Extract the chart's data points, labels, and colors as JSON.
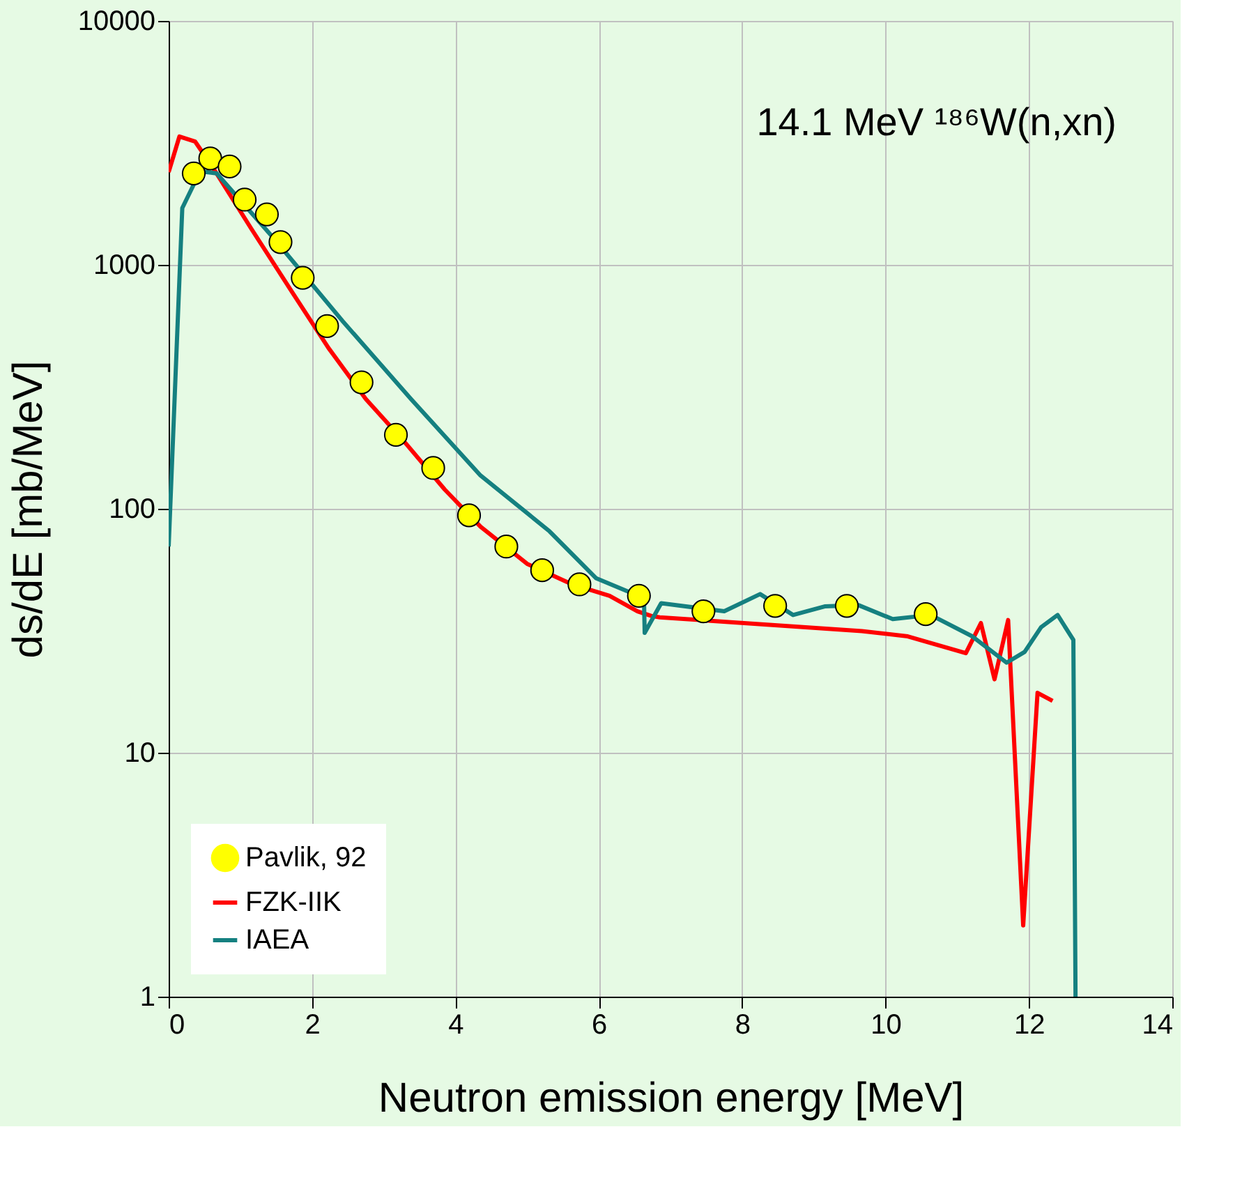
{
  "chart_data": {
    "type": "line",
    "xlabel": "Neutron emission energy [MeV]",
    "ylabel": "ds/dE  [mb/MeV]",
    "xlim": [
      0,
      14
    ],
    "ylim": [
      1,
      10000
    ],
    "xticks": [
      0,
      2,
      4,
      6,
      8,
      10,
      12,
      14
    ],
    "yticks": [
      1,
      10,
      100,
      1000,
      10000
    ],
    "log": "y",
    "grid": true,
    "legend": "bottom left",
    "annotations": [
      "14.1 MeV ¹⁸⁶W(n,xn)"
    ],
    "series": [
      {
        "name": "Pavlik, 92",
        "type": "scatter",
        "marker": "circle",
        "color": "#ffff00",
        "x": [
          0.35,
          0.58,
          0.85,
          1.06,
          1.37,
          1.56,
          1.87,
          2.21,
          2.69,
          3.17,
          3.69,
          4.19,
          4.71,
          5.21,
          5.73,
          6.56,
          7.46,
          8.46,
          9.46,
          10.56
        ],
        "values": [
          2370,
          2730,
          2530,
          1850,
          1610,
          1240,
          885,
          561,
          330,
          201,
          147,
          94,
          70,
          56,
          49,
          44,
          38,
          40,
          40,
          37
        ]
      },
      {
        "name": "FZK-IIK",
        "color": "#ff0000",
        "x": [
          0,
          0.15,
          0.37,
          0.63,
          1.15,
          1.73,
          2.23,
          2.75,
          3.27,
          3.85,
          4.35,
          5.0,
          5.63,
          6.15,
          6.54,
          6.73,
          6.85,
          9.67,
          10.31,
          11.12,
          11.33,
          11.52,
          11.71,
          11.92,
          12.12,
          12.33
        ],
        "values": [
          2400,
          3360,
          3200,
          2470,
          1410,
          767,
          456,
          282,
          191,
          120,
          84.5,
          59.5,
          49,
          44,
          38,
          36.4,
          35.9,
          31.5,
          30,
          25.6,
          34,
          20,
          35,
          1.96,
          17.6,
          16.3
        ]
      },
      {
        "name": "IAEA",
        "color": "#158080",
        "x": [
          0,
          0.19,
          0.44,
          0.67,
          1.46,
          2.42,
          3.38,
          4.35,
          5.31,
          5.96,
          6.63,
          6.64,
          6.87,
          7.75,
          8.25,
          8.71,
          9.15,
          9.62,
          10.1,
          10.63,
          11.21,
          11.69,
          11.94,
          12.17,
          12.4,
          12.62,
          12.65
        ],
        "values": [
          70,
          1710,
          2420,
          2370,
          1290,
          591,
          282,
          137,
          81,
          52,
          43,
          31,
          41,
          38,
          44.7,
          36.7,
          39.8,
          40.3,
          35.3,
          36.7,
          30,
          23.4,
          25.9,
          32.7,
          36.7,
          29,
          1
        ]
      }
    ]
  }
}
